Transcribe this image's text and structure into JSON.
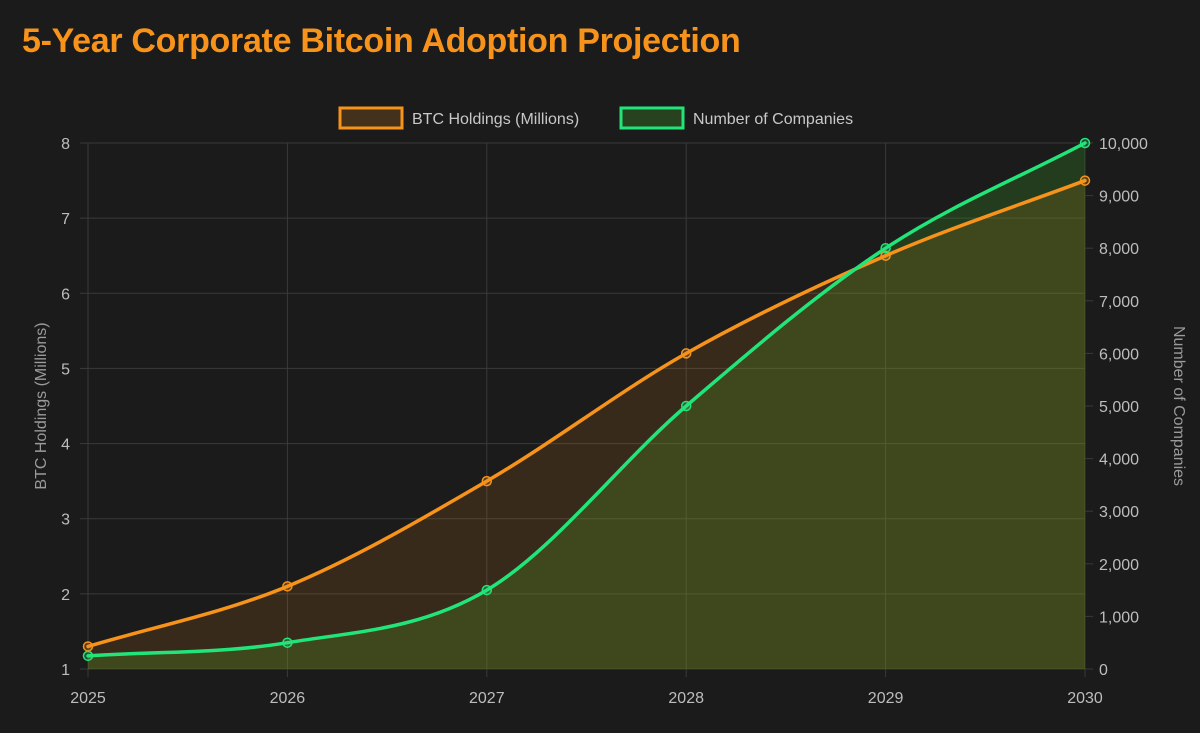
{
  "page": {
    "title": "5-Year Corporate Bitcoin Adoption Projection"
  },
  "colors": {
    "background": "#1b1b1b",
    "grid": "#3a3a3a",
    "tick_text": "#bdbdbd",
    "btc": "#f7931a",
    "btc_fill": "rgba(247,147,26,0.13)",
    "companies": "#22e57a",
    "companies_fill": "rgba(60,140,40,0.30)"
  },
  "chart_data": {
    "type": "line",
    "title": "5-Year Corporate Bitcoin Adoption Projection",
    "x": [
      "2025",
      "2026",
      "2027",
      "2028",
      "2029",
      "2030"
    ],
    "legend_position": "top-center",
    "grid": true,
    "series": [
      {
        "name": "BTC Holdings (Millions)",
        "axis": "left",
        "values": [
          1.3,
          2.1,
          3.5,
          5.2,
          6.5,
          7.5
        ],
        "fill": true
      },
      {
        "name": "Number of Companies",
        "axis": "right",
        "values": [
          250,
          500,
          1500,
          5000,
          8000,
          10000
        ],
        "fill": true
      }
    ],
    "y_left": {
      "label": "BTC Holdings (Millions)",
      "min": 1,
      "max": 8,
      "ticks": [
        "1",
        "2",
        "3",
        "4",
        "5",
        "6",
        "7",
        "8"
      ]
    },
    "y_right": {
      "label": "Number of Companies",
      "min": 0,
      "max": 10000,
      "ticks": [
        "0",
        "1,000",
        "2,000",
        "3,000",
        "4,000",
        "5,000",
        "6,000",
        "7,000",
        "8,000",
        "9,000",
        "10,000"
      ]
    }
  }
}
